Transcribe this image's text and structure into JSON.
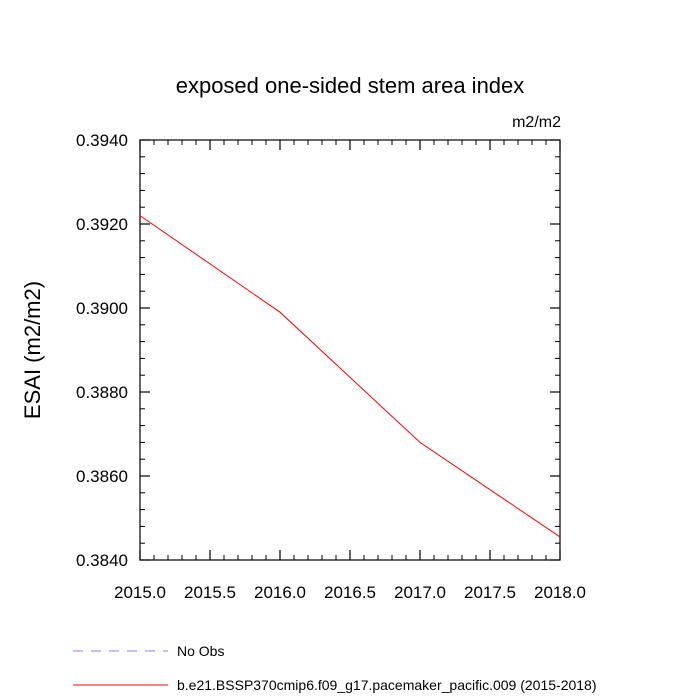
{
  "chart_data": {
    "type": "line",
    "title": "exposed one-sided stem area index",
    "units": "m2/m2",
    "xlabel": "",
    "ylabel": "ESAI  (m2/m2)",
    "xlim": [
      2015.0,
      2018.0
    ],
    "ylim": [
      0.384,
      0.394
    ],
    "x_major_ticks": [
      2015.0,
      2015.5,
      2016.0,
      2016.5,
      2017.0,
      2017.5,
      2018.0
    ],
    "x_tick_labels": [
      "2015.0",
      "2015.5",
      "2016.0",
      "2016.5",
      "2017.0",
      "2017.5",
      "2018.0"
    ],
    "y_major_ticks": [
      0.384,
      0.386,
      0.388,
      0.39,
      0.392,
      0.394
    ],
    "y_tick_labels": [
      "0.3840",
      "0.3860",
      "0.3880",
      "0.3900",
      "0.3920",
      "0.3940"
    ],
    "x_minor_step": 0.1,
    "y_minor_step": 0.0004,
    "grid": false,
    "series": [
      {
        "name": "b.e21.BSSP370cmip6.f09_g17.pacemaker_pacific.009 (2015-2018)",
        "color": "#ff0000",
        "style": "solid",
        "x": [
          2015.0,
          2016.0,
          2017.0,
          2018.0
        ],
        "values": [
          0.3922,
          0.3899,
          0.3868,
          0.38455
        ]
      }
    ],
    "legend": {
      "position": "bottom-left",
      "entries": [
        {
          "label": "No Obs",
          "color": "#8080ff",
          "style": "dashed"
        },
        {
          "label": "b.e21.BSSP370cmip6.f09_g17.pacemaker_pacific.009 (2015-2018)",
          "color": "#ff0000",
          "style": "solid"
        }
      ]
    }
  }
}
